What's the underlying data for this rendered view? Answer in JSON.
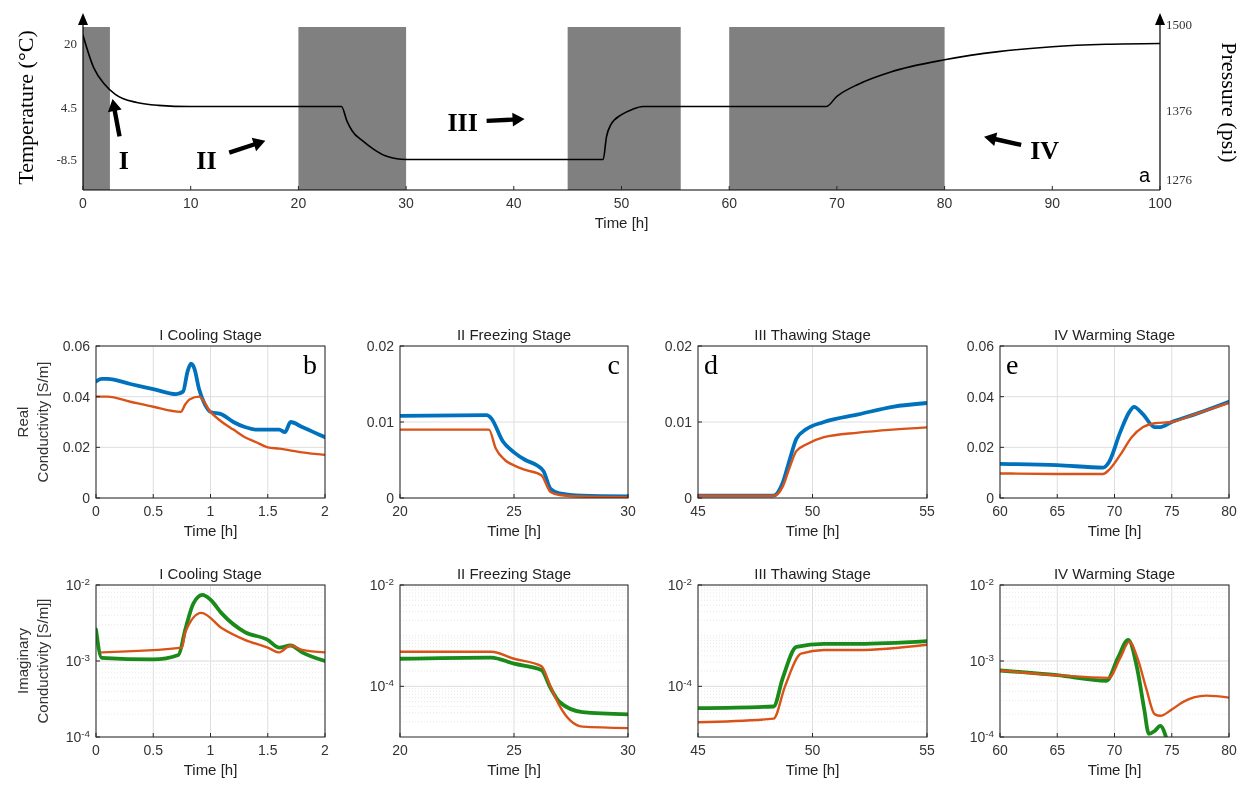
{
  "chart_data": [
    {
      "type": "line",
      "xlabel": "Time [h]",
      "ylabel": "Temperature (°C)",
      "y2label": "Pressure (psi)",
      "xlim": [
        0,
        100
      ],
      "xticks": [
        0,
        10,
        20,
        30,
        40,
        50,
        60,
        70,
        80,
        90,
        100
      ],
      "ylim": [
        -16,
        27
      ],
      "yticks": [
        20,
        4.5,
        -8.5
      ],
      "y2lim": [
        1260,
        1513
      ],
      "y2ticks": [
        1500,
        1376,
        1276
      ],
      "series": [
        {
          "color": "#000000",
          "x": [
            0,
            1,
            2,
            3,
            5,
            7,
            10,
            24,
            24.5,
            25,
            26,
            27,
            28,
            30,
            48.3,
            48.6,
            49,
            50,
            51,
            52,
            69,
            70,
            72,
            75,
            80,
            85,
            90,
            95,
            100
          ],
          "values": [
            22,
            14,
            10,
            7.5,
            5.5,
            4.8,
            4.5,
            4.5,
            1,
            -1.5,
            -4,
            -6,
            -7.5,
            -8.5,
            -8.5,
            -3,
            0,
            2.5,
            3.8,
            4.5,
            4.5,
            7,
            10,
            13,
            16,
            18,
            19.2,
            19.8,
            20
          ]
        }
      ],
      "bands": [
        {
          "axis": "x",
          "from": 0,
          "to": 2.5,
          "color": "#808080"
        },
        {
          "axis": "x",
          "from": 20,
          "to": 30,
          "color": "#808080"
        },
        {
          "axis": "x",
          "from": 45,
          "to": 55.5,
          "color": "#808080"
        },
        {
          "axis": "x",
          "from": 60,
          "to": 80,
          "color": "#808080"
        }
      ],
      "annotations": [
        "I",
        "II",
        "III",
        "IV",
        "a"
      ]
    },
    {
      "type": "line",
      "title": "I Cooling Stage",
      "xlabel": "Time [h]",
      "ylabel": "Real Conductivity [S/m]",
      "xlim": [
        0,
        2
      ],
      "xticks": [
        0,
        0.5,
        1,
        1.5,
        2
      ],
      "ylim": [
        0,
        0.06
      ],
      "yticks": [
        0,
        0.02,
        0.04,
        0.06
      ],
      "grid": true,
      "annotations": [
        "b"
      ],
      "series": [
        {
          "color": "#0072bd",
          "x": [
            0,
            0.05,
            0.1,
            0.3,
            0.5,
            0.7,
            0.76,
            0.8,
            0.83,
            0.86,
            0.9,
            0.95,
            1,
            1.1,
            1.2,
            1.3,
            1.4,
            1.5,
            1.6,
            1.65,
            1.7,
            1.8,
            1.9,
            2
          ],
          "values": [
            0.046,
            0.047,
            0.047,
            0.045,
            0.043,
            0.041,
            0.042,
            0.05,
            0.053,
            0.051,
            0.043,
            0.037,
            0.034,
            0.033,
            0.03,
            0.028,
            0.027,
            0.027,
            0.027,
            0.026,
            0.03,
            0.028,
            0.026,
            0.024
          ]
        },
        {
          "color": "#d95319",
          "x": [
            0,
            0.1,
            0.3,
            0.5,
            0.74,
            0.78,
            0.82,
            0.9,
            1,
            1.1,
            1.2,
            1.3,
            1.4,
            1.5,
            1.6,
            1.8,
            2
          ],
          "values": [
            0.04,
            0.04,
            0.038,
            0.036,
            0.034,
            0.037,
            0.039,
            0.04,
            0.034,
            0.03,
            0.027,
            0.024,
            0.022,
            0.02,
            0.0195,
            0.018,
            0.017
          ]
        }
      ]
    },
    {
      "type": "line",
      "title": "II Freezing Stage",
      "xlabel": "Time [h]",
      "xlim": [
        20,
        30
      ],
      "xticks": [
        20,
        25,
        30
      ],
      "ylim": [
        0,
        0.02
      ],
      "yticks": [
        0,
        0.01,
        0.02
      ],
      "grid": true,
      "annotations": [
        "c"
      ],
      "series": [
        {
          "color": "#0072bd",
          "x": [
            20,
            23.8,
            24,
            24.5,
            25,
            25.5,
            26,
            26.3,
            26.6,
            27,
            28,
            30
          ],
          "values": [
            0.0108,
            0.0109,
            0.0105,
            0.0075,
            0.006,
            0.005,
            0.0043,
            0.0035,
            0.0012,
            0.0006,
            0.0003,
            0.0002
          ]
        },
        {
          "color": "#d95319",
          "x": [
            20,
            23.9,
            24.2,
            24.6,
            25,
            25.5,
            26.2,
            26.6,
            27,
            28,
            30
          ],
          "values": [
            0.009,
            0.009,
            0.0065,
            0.005,
            0.0043,
            0.0037,
            0.003,
            0.0008,
            0.0004,
            0.0002,
            0.0001
          ]
        }
      ]
    },
    {
      "type": "line",
      "title": "III Thawing Stage",
      "xlabel": "Time [h]",
      "xlim": [
        45,
        55
      ],
      "xticks": [
        45,
        50,
        55
      ],
      "ylim": [
        0,
        0.02
      ],
      "yticks": [
        0,
        0.01,
        0.02
      ],
      "grid": true,
      "annotations": [
        "d"
      ],
      "series": [
        {
          "color": "#0072bd",
          "x": [
            45,
            48.3,
            48.7,
            49,
            49.3,
            49.7,
            50.5,
            52,
            53.5,
            55
          ],
          "values": [
            0.0003,
            0.0003,
            0.002,
            0.005,
            0.0078,
            0.009,
            0.01,
            0.011,
            0.012,
            0.0125
          ]
        },
        {
          "color": "#d95319",
          "x": [
            45,
            48.3,
            48.7,
            49,
            49.3,
            49.7,
            50.5,
            52,
            53.5,
            55
          ],
          "values": [
            0.0003,
            0.0003,
            0.0015,
            0.004,
            0.0062,
            0.007,
            0.008,
            0.0086,
            0.009,
            0.0093
          ]
        }
      ]
    },
    {
      "type": "line",
      "title": "IV Warming Stage",
      "xlabel": "Time [h]",
      "xlim": [
        60,
        80
      ],
      "xticks": [
        60,
        65,
        70,
        75,
        80
      ],
      "ylim": [
        0,
        0.06
      ],
      "yticks": [
        0,
        0.02,
        0.04,
        0.06
      ],
      "grid": true,
      "annotations": [
        "e"
      ],
      "series": [
        {
          "color": "#0072bd",
          "x": [
            60,
            65,
            69,
            69.5,
            70.5,
            71.3,
            71.7,
            72.5,
            73.5,
            74,
            75,
            77,
            80
          ],
          "values": [
            0.0135,
            0.013,
            0.012,
            0.014,
            0.026,
            0.034,
            0.036,
            0.033,
            0.028,
            0.028,
            0.03,
            0.033,
            0.038
          ]
        },
        {
          "color": "#d95319",
          "x": [
            60,
            65,
            69,
            69.5,
            70.5,
            71.5,
            72.5,
            73.5,
            75,
            77,
            80
          ],
          "values": [
            0.0097,
            0.0095,
            0.0095,
            0.011,
            0.017,
            0.024,
            0.028,
            0.0295,
            0.03,
            0.033,
            0.0375
          ]
        }
      ]
    },
    {
      "type": "line",
      "title": "I Cooling Stage",
      "xlabel": "Time [h]",
      "ylabel": "Imaginary Conductivity [S/m]]",
      "xlim": [
        0,
        2
      ],
      "xticks": [
        0,
        0.5,
        1,
        1.5,
        2
      ],
      "log": true,
      "ylim": [
        0.0001,
        0.01
      ],
      "yticks": [
        {
          "value": 0.01,
          "label": "10$^{-2}$"
        },
        {
          "value": 0.001,
          "label": "10$^{-3}$"
        },
        {
          "value": 0.0001,
          "label": "10$^{-4}$"
        }
      ],
      "grid": true,
      "series": [
        {
          "color": "#1a8a1a",
          "x": [
            0,
            0.05,
            0.5,
            0.72,
            0.78,
            0.85,
            0.93,
            1,
            1.1,
            1.3,
            1.5,
            1.6,
            1.7,
            1.8,
            2
          ],
          "values": [
            0.0026,
            0.0011,
            0.00105,
            0.0012,
            0.0026,
            0.0057,
            0.0074,
            0.0064,
            0.0042,
            0.0024,
            0.0019,
            0.0015,
            0.0016,
            0.0013,
            0.001
          ]
        },
        {
          "color": "#d95319",
          "x": [
            0.05,
            0.75,
            0.78,
            0.92,
            1.1,
            1.3,
            1.5,
            1.6,
            1.7,
            1.8,
            2
          ],
          "values": [
            0.0013,
            0.0015,
            0.0024,
            0.0043,
            0.0027,
            0.0019,
            0.0015,
            0.0013,
            0.0016,
            0.0014,
            0.0013
          ]
        }
      ]
    },
    {
      "type": "line",
      "title": "II Freezing Stage",
      "xlabel": "Time [h]",
      "xlim": [
        20,
        30
      ],
      "xticks": [
        20,
        25,
        30
      ],
      "log": true,
      "ylim": [
        1e-05,
        0.01
      ],
      "yticks": [
        {
          "value": 0.01,
          "label": "10$^{-2}$"
        },
        {
          "value": 0.0001,
          "label": "10$^{-4}$"
        }
      ],
      "grid": true,
      "series": [
        {
          "color": "#1a8a1a",
          "x": [
            20,
            24,
            25,
            26.2,
            26.6,
            27,
            28,
            30
          ],
          "values": [
            0.00035,
            0.00037,
            0.00028,
            0.00021,
            9.3e-05,
            4.9e-05,
            3.1e-05,
            2.8e-05
          ]
        },
        {
          "color": "#d95319",
          "x": [
            20,
            24,
            25,
            26.2,
            26.6,
            27,
            28,
            30
          ],
          "values": [
            0.00048,
            0.00048,
            0.00035,
            0.00025,
            0.0001,
            4.1e-05,
            1.6e-05,
            1.5e-05
          ]
        }
      ]
    },
    {
      "type": "line",
      "title": "III Thawing Stage",
      "xlabel": "Time [h]",
      "xlim": [
        45,
        55
      ],
      "xticks": [
        45,
        50,
        55
      ],
      "log": true,
      "ylim": [
        1e-05,
        0.01
      ],
      "yticks": [
        {
          "value": 0.01,
          "label": "10$^{-2}$"
        },
        {
          "value": 0.0001,
          "label": "10$^{-4}$"
        }
      ],
      "grid": true,
      "series": [
        {
          "color": "#1a8a1a",
          "x": [
            45,
            48.3,
            48.7,
            49.3,
            50.5,
            52,
            55
          ],
          "values": [
            3.7e-05,
            4e-05,
            0.000145,
            0.0006,
            0.00069,
            0.00069,
            0.00078
          ]
        },
        {
          "color": "#d95319",
          "x": [
            45,
            48.3,
            48.8,
            49.5,
            50.5,
            52,
            55
          ],
          "values": [
            1.95e-05,
            2.3e-05,
            0.0001,
            0.00044,
            0.00052,
            0.00052,
            0.00066
          ]
        }
      ]
    },
    {
      "type": "line",
      "title": "IV Warming Stage",
      "xlabel": "Time [h]",
      "xlim": [
        60,
        80
      ],
      "xticks": [
        60,
        65,
        70,
        75,
        80
      ],
      "log": true,
      "ylim": [
        0.0001,
        0.01
      ],
      "yticks": [
        {
          "value": 0.01,
          "label": "10$^{-2}$"
        },
        {
          "value": 0.001,
          "label": "10$^{-3}$"
        },
        {
          "value": 0.0001,
          "label": "10$^{-4}$"
        }
      ],
      "grid": true,
      "series": [
        {
          "color": "#1a8a1a",
          "x": [
            60,
            65,
            69.3,
            70.3,
            71.2,
            72,
            72.6,
            73,
            73.5,
            74,
            74.5
          ],
          "values": [
            0.00075,
            0.00065,
            0.00055,
            0.0011,
            0.0019,
            0.00077,
            0.00023,
            0.00011,
            0.00012,
            0.00014,
            0.0001
          ]
        },
        {
          "color": "#d95319",
          "x": [
            60,
            65,
            69.5,
            70.5,
            71.3,
            72,
            72.8,
            73.5,
            74,
            75,
            76,
            78,
            80
          ],
          "values": [
            0.00075,
            0.00065,
            0.0006,
            0.0011,
            0.0018,
            0.0011,
            0.00042,
            0.0002,
            0.00019,
            0.00023,
            0.00029,
            0.00035,
            0.00033
          ]
        }
      ]
    }
  ]
}
